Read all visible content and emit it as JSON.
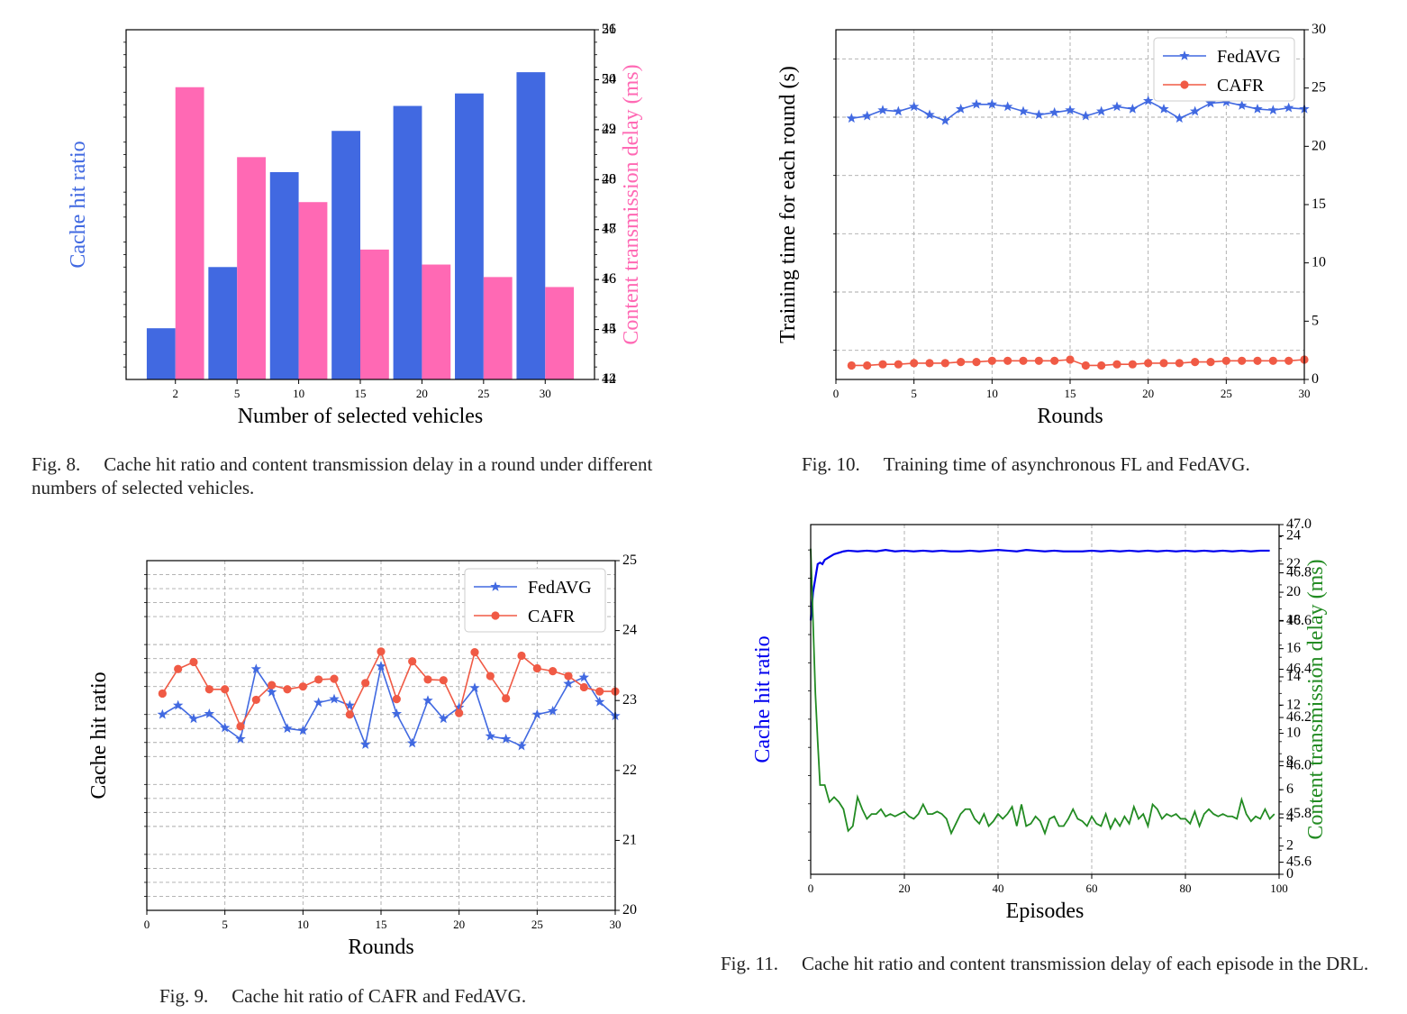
{
  "captions": {
    "fig8": {
      "label": "Fig. 8.",
      "text": "Cache hit ratio and content transmission delay in a round under different numbers of selected vehicles."
    },
    "fig9": {
      "label": "Fig. 9.",
      "text": "Cache hit ratio of CAFR and FedAVG."
    },
    "fig10": {
      "label": "Fig. 10.",
      "text": "Training time of asynchronous FL and FedAVG."
    },
    "fig11": {
      "label": "Fig. 11.",
      "text": "Cache hit ratio and content transmission delay of each episode in the DRL."
    }
  },
  "chart_data": [
    {
      "id": "fig8",
      "type": "bar",
      "xlabel": "Number of selected vehicles",
      "ylabel": "Cache hit ratio",
      "ylabel_right": "Content transmission delay (ms)",
      "categories": [
        "2",
        "5",
        "10",
        "15",
        "20",
        "25",
        "30"
      ],
      "ylim": [
        12,
        26
      ],
      "yticks": [
        12,
        14,
        16,
        18,
        20,
        22,
        24,
        26
      ],
      "ylim_right": [
        44,
        51
      ],
      "yticks_right": [
        44,
        45,
        46,
        47,
        48,
        49,
        50,
        51
      ],
      "colors": [
        "#4169e1",
        "#ff69b4"
      ],
      "series": [
        {
          "name": "Cache hit ratio",
          "axis": "left",
          "values": [
            14.05,
            16.5,
            20.3,
            21.95,
            22.95,
            23.45,
            24.3
          ]
        },
        {
          "name": "Content transmission delay",
          "axis": "right",
          "values": [
            49.85,
            48.45,
            47.55,
            46.6,
            46.3,
            46.05,
            45.85
          ]
        }
      ]
    },
    {
      "id": "fig9",
      "type": "line",
      "xlabel": "Rounds",
      "ylabel": "Cache hit ratio",
      "xlim": [
        0,
        30
      ],
      "xticks": [
        0,
        5,
        10,
        15,
        20,
        25,
        30
      ],
      "ylim": [
        20,
        25
      ],
      "yticks": [
        20,
        21,
        22,
        23,
        24,
        25
      ],
      "legend": "top-right",
      "x": [
        1,
        2,
        3,
        4,
        5,
        6,
        7,
        8,
        9,
        10,
        11,
        12,
        13,
        14,
        15,
        16,
        17,
        18,
        19,
        20,
        21,
        22,
        23,
        24,
        25,
        26,
        27,
        28,
        29,
        30
      ],
      "series": [
        {
          "name": "FedAVG",
          "color": "#4169e1",
          "marker": "star",
          "values": [
            22.8,
            22.93,
            22.74,
            22.81,
            22.61,
            22.45,
            23.45,
            23.12,
            22.6,
            22.57,
            22.97,
            23.02,
            22.93,
            22.37,
            23.49,
            22.81,
            22.39,
            23.0,
            22.74,
            22.9,
            23.18,
            22.49,
            22.45,
            22.35,
            22.8,
            22.85,
            23.24,
            23.33,
            22.98,
            22.78
          ]
        },
        {
          "name": "CAFR",
          "color": "#f05a45",
          "marker": "circle",
          "values": [
            23.1,
            23.45,
            23.55,
            23.16,
            23.16,
            22.63,
            23.01,
            23.22,
            23.16,
            23.2,
            23.3,
            23.31,
            22.8,
            23.25,
            23.7,
            23.02,
            23.56,
            23.3,
            23.29,
            22.82,
            23.69,
            23.35,
            23.03,
            23.64,
            23.46,
            23.42,
            23.35,
            23.19,
            23.13,
            23.13
          ]
        }
      ]
    },
    {
      "id": "fig10",
      "type": "line",
      "xlabel": "Rounds",
      "ylabel": "Training time for each round (s)",
      "xlim": [
        0,
        30
      ],
      "xticks": [
        0,
        5,
        10,
        15,
        20,
        25,
        30
      ],
      "ylim": [
        0,
        30
      ],
      "yticks": [
        0,
        5,
        10,
        15,
        20,
        25,
        30
      ],
      "legend": "top-right",
      "x": [
        1,
        2,
        3,
        4,
        5,
        6,
        7,
        8,
        9,
        10,
        11,
        12,
        13,
        14,
        15,
        16,
        17,
        18,
        19,
        20,
        21,
        22,
        23,
        24,
        25,
        26,
        27,
        28,
        29,
        30
      ],
      "series": [
        {
          "name": "FedAVG",
          "color": "#4169e1",
          "marker": "star",
          "values": [
            22.4,
            22.6,
            23.1,
            23.0,
            23.4,
            22.7,
            22.2,
            23.2,
            23.6,
            23.6,
            23.4,
            23.0,
            22.7,
            22.9,
            23.1,
            22.6,
            23.0,
            23.4,
            23.2,
            23.9,
            23.2,
            22.4,
            23.0,
            23.7,
            23.8,
            23.5,
            23.2,
            23.1,
            23.3,
            23.2
          ]
        },
        {
          "name": "CAFR",
          "color": "#f05a45",
          "marker": "circle",
          "values": [
            1.2,
            1.2,
            1.3,
            1.3,
            1.4,
            1.4,
            1.4,
            1.5,
            1.5,
            1.6,
            1.6,
            1.6,
            1.6,
            1.6,
            1.7,
            1.2,
            1.2,
            1.3,
            1.3,
            1.4,
            1.4,
            1.4,
            1.5,
            1.5,
            1.6,
            1.6,
            1.6,
            1.6,
            1.6,
            1.7
          ]
        }
      ]
    },
    {
      "id": "fig11",
      "type": "line",
      "xlabel": "Episodes",
      "ylabel": "Cache hit ratio",
      "ylabel_right": "Content transmission delay (ms)",
      "xlim": [
        0,
        100
      ],
      "xticks": [
        0,
        20,
        40,
        60,
        80,
        100
      ],
      "ylim": [
        0,
        24.8
      ],
      "yticks": [
        0,
        2,
        4,
        6,
        8,
        10,
        12,
        14,
        16,
        18,
        20,
        22,
        24
      ],
      "ylim_right": [
        45.55,
        47.0
      ],
      "yticks_right": [
        "45.6",
        "45.8",
        "46.0",
        "46.2",
        "46.4",
        "46.6",
        "46.8",
        "47.0"
      ],
      "series": [
        {
          "name": "Cache hit ratio",
          "axis": "left",
          "color": "#0000ee",
          "x": [
            0,
            0.5,
            1,
            1.5,
            2,
            2.5,
            3,
            4,
            5,
            6,
            7,
            8,
            10,
            12,
            14,
            16,
            18,
            20,
            22,
            24,
            26,
            28,
            30,
            32,
            34,
            36,
            38,
            40,
            42,
            44,
            46,
            48,
            50,
            52,
            54,
            56,
            58,
            60,
            62,
            64,
            66,
            68,
            70,
            72,
            74,
            76,
            78,
            80,
            82,
            84,
            86,
            88,
            90,
            92,
            94,
            96,
            98
          ],
          "values": [
            18.0,
            20.0,
            21.0,
            22.0,
            22.1,
            22.0,
            22.3,
            22.5,
            22.7,
            22.8,
            22.9,
            22.95,
            22.9,
            22.95,
            22.9,
            23.0,
            22.9,
            22.95,
            22.9,
            22.95,
            22.9,
            22.95,
            22.9,
            22.9,
            22.95,
            22.9,
            22.95,
            23.0,
            22.95,
            22.9,
            23.0,
            22.95,
            22.9,
            22.95,
            22.9,
            22.9,
            22.9,
            22.95,
            22.9,
            22.95,
            22.9,
            22.95,
            22.9,
            22.95,
            22.9,
            22.95,
            22.9,
            22.95,
            22.9,
            22.95,
            22.9,
            22.95,
            22.9,
            22.95,
            22.9,
            22.95,
            22.95
          ]
        },
        {
          "name": "Content transmission delay",
          "axis": "right",
          "color": "#228b22",
          "x": [
            0,
            0.5,
            1,
            1.5,
            2,
            3,
            4,
            5,
            6,
            7,
            8,
            9,
            10,
            11,
            12,
            13,
            14,
            15,
            16,
            17,
            18,
            19,
            20,
            21,
            22,
            23,
            24,
            25,
            26,
            27,
            28,
            29,
            30,
            31,
            32,
            33,
            34,
            35,
            36,
            37,
            38,
            39,
            40,
            41,
            42,
            43,
            44,
            45,
            46,
            47,
            48,
            49,
            50,
            51,
            52,
            53,
            54,
            55,
            56,
            57,
            58,
            59,
            60,
            61,
            62,
            63,
            64,
            65,
            66,
            67,
            68,
            69,
            70,
            71,
            72,
            73,
            74,
            75,
            76,
            77,
            78,
            79,
            80,
            81,
            82,
            83,
            84,
            85,
            86,
            87,
            88,
            89,
            90,
            91,
            92,
            93,
            94,
            95,
            96,
            97,
            98,
            99
          ],
          "values": [
            46.9,
            46.6,
            46.3,
            46.1,
            45.92,
            45.92,
            45.85,
            45.87,
            45.85,
            45.82,
            45.73,
            45.75,
            45.87,
            45.82,
            45.78,
            45.8,
            45.8,
            45.82,
            45.79,
            45.8,
            45.79,
            45.8,
            45.81,
            45.79,
            45.78,
            45.8,
            45.84,
            45.8,
            45.8,
            45.81,
            45.8,
            45.78,
            45.72,
            45.76,
            45.8,
            45.82,
            45.82,
            45.78,
            45.76,
            45.8,
            45.75,
            45.77,
            45.8,
            45.78,
            45.8,
            45.83,
            45.75,
            45.84,
            45.75,
            45.76,
            45.79,
            45.77,
            45.72,
            45.78,
            45.79,
            45.75,
            45.75,
            45.78,
            45.82,
            45.78,
            45.77,
            45.75,
            45.79,
            45.76,
            45.75,
            45.8,
            45.74,
            45.78,
            45.75,
            45.79,
            45.76,
            45.83,
            45.78,
            45.8,
            45.75,
            45.84,
            45.82,
            45.78,
            45.8,
            45.79,
            45.8,
            45.78,
            45.78,
            45.76,
            45.81,
            45.75,
            45.8,
            45.82,
            45.8,
            45.79,
            45.8,
            45.79,
            45.79,
            45.78,
            45.86,
            45.8,
            45.77,
            45.79,
            45.78,
            45.82,
            45.78,
            45.8
          ]
        }
      ]
    }
  ]
}
